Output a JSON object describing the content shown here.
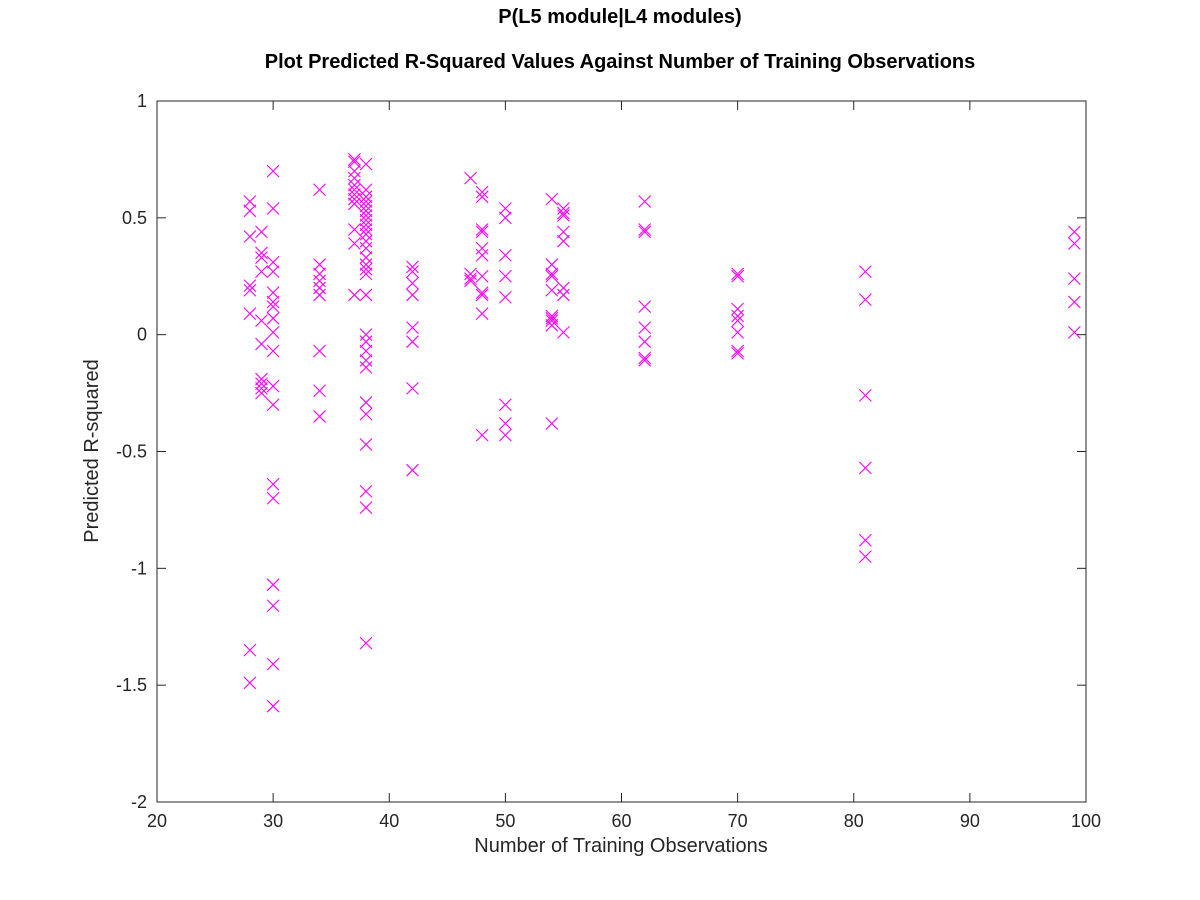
{
  "chart_data": {
    "type": "scatter",
    "title": "P(L5 module|L4 modules)",
    "subtitle": "Plot Predicted R-Squared Values Against Number of Training Observations",
    "xlabel": "Number of Training Observations",
    "ylabel": "Predicted R-squared",
    "xlim": [
      20,
      100
    ],
    "ylim": [
      -2,
      1
    ],
    "xticks": [
      20,
      30,
      40,
      50,
      60,
      70,
      80,
      90,
      100
    ],
    "xtick_labels": [
      "20",
      "30",
      "40",
      "50",
      "60",
      "70",
      "80",
      "90",
      "100"
    ],
    "yticks": [
      -2,
      -1.5,
      -1,
      -0.5,
      0,
      0.5,
      1
    ],
    "ytick_labels": [
      "-2",
      "-1.5",
      "-1",
      "-0.5",
      "0",
      "0.5",
      "1"
    ],
    "grid": false,
    "legend": "none",
    "marker": "x",
    "marker_color": "#ff00ff",
    "series": [
      {
        "points": [
          [
            28,
            0.57
          ],
          [
            28,
            0.53
          ],
          [
            28,
            0.42
          ],
          [
            28,
            0.21
          ],
          [
            28,
            0.19
          ],
          [
            28,
            0.09
          ],
          [
            28,
            -1.35
          ],
          [
            28,
            -1.49
          ],
          [
            29,
            0.44
          ],
          [
            29,
            0.35
          ],
          [
            29,
            0.33
          ],
          [
            29,
            0.27
          ],
          [
            29,
            0.06
          ],
          [
            29,
            -0.04
          ],
          [
            29,
            -0.19
          ],
          [
            29,
            -0.21
          ],
          [
            29,
            -0.23
          ],
          [
            29,
            -0.25
          ],
          [
            30,
            0.7
          ],
          [
            30,
            0.54
          ],
          [
            30,
            0.31
          ],
          [
            30,
            0.27
          ],
          [
            30,
            0.18
          ],
          [
            30,
            0.14
          ],
          [
            30,
            0.12
          ],
          [
            30,
            0.07
          ],
          [
            30,
            0.01
          ],
          [
            30,
            -0.07
          ],
          [
            30,
            -0.22
          ],
          [
            30,
            -0.3
          ],
          [
            30,
            -0.64
          ],
          [
            30,
            -0.7
          ],
          [
            30,
            -1.07
          ],
          [
            30,
            -1.16
          ],
          [
            30,
            -1.41
          ],
          [
            30,
            -1.59
          ],
          [
            34,
            0.62
          ],
          [
            34,
            0.3
          ],
          [
            34,
            0.26
          ],
          [
            34,
            0.23
          ],
          [
            34,
            0.2
          ],
          [
            34,
            0.17
          ],
          [
            34,
            -0.07
          ],
          [
            34,
            -0.24
          ],
          [
            34,
            -0.35
          ],
          [
            37,
            0.75
          ],
          [
            37,
            0.74
          ],
          [
            37,
            0.7
          ],
          [
            37,
            0.67
          ],
          [
            37,
            0.64
          ],
          [
            37,
            0.62
          ],
          [
            37,
            0.6
          ],
          [
            37,
            0.58
          ],
          [
            37,
            0.56
          ],
          [
            37,
            0.45
          ],
          [
            37,
            0.39
          ],
          [
            37,
            0.17
          ],
          [
            38,
            0.73
          ],
          [
            38,
            0.62
          ],
          [
            38,
            0.59
          ],
          [
            38,
            0.57
          ],
          [
            38,
            0.55
          ],
          [
            38,
            0.53
          ],
          [
            38,
            0.51
          ],
          [
            38,
            0.49
          ],
          [
            38,
            0.47
          ],
          [
            38,
            0.45
          ],
          [
            38,
            0.43
          ],
          [
            38,
            0.4
          ],
          [
            38,
            0.37
          ],
          [
            38,
            0.33
          ],
          [
            38,
            0.3
          ],
          [
            38,
            0.28
          ],
          [
            38,
            0.26
          ],
          [
            38,
            0.17
          ],
          [
            38,
            0.0
          ],
          [
            38,
            -0.03
          ],
          [
            38,
            -0.07
          ],
          [
            38,
            -0.11
          ],
          [
            38,
            -0.14
          ],
          [
            38,
            -0.29
          ],
          [
            38,
            -0.34
          ],
          [
            38,
            -0.47
          ],
          [
            38,
            -0.67
          ],
          [
            38,
            -0.74
          ],
          [
            38,
            -1.32
          ],
          [
            42,
            0.29
          ],
          [
            42,
            0.27
          ],
          [
            42,
            0.22
          ],
          [
            42,
            0.17
          ],
          [
            42,
            0.03
          ],
          [
            42,
            -0.03
          ],
          [
            42,
            -0.23
          ],
          [
            42,
            -0.58
          ],
          [
            47,
            0.67
          ],
          [
            47,
            0.26
          ],
          [
            47,
            0.24
          ],
          [
            47,
            0.23
          ],
          [
            48,
            0.61
          ],
          [
            48,
            0.59
          ],
          [
            48,
            0.45
          ],
          [
            48,
            0.44
          ],
          [
            48,
            0.37
          ],
          [
            48,
            0.34
          ],
          [
            48,
            0.25
          ],
          [
            48,
            0.18
          ],
          [
            48,
            0.17
          ],
          [
            48,
            0.09
          ],
          [
            48,
            -0.43
          ],
          [
            50,
            0.54
          ],
          [
            50,
            0.5
          ],
          [
            50,
            0.34
          ],
          [
            50,
            0.25
          ],
          [
            50,
            0.16
          ],
          [
            50,
            -0.3
          ],
          [
            50,
            -0.38
          ],
          [
            50,
            -0.43
          ],
          [
            54,
            0.58
          ],
          [
            54,
            0.3
          ],
          [
            54,
            0.26
          ],
          [
            54,
            0.25
          ],
          [
            54,
            0.19
          ],
          [
            54,
            0.08
          ],
          [
            54,
            0.07
          ],
          [
            54,
            0.06
          ],
          [
            54,
            0.04
          ],
          [
            54,
            -0.38
          ],
          [
            55,
            0.54
          ],
          [
            55,
            0.52
          ],
          [
            55,
            0.51
          ],
          [
            55,
            0.44
          ],
          [
            55,
            0.4
          ],
          [
            55,
            0.2
          ],
          [
            55,
            0.17
          ],
          [
            55,
            0.01
          ],
          [
            62,
            0.57
          ],
          [
            62,
            0.45
          ],
          [
            62,
            0.44
          ],
          [
            62,
            0.12
          ],
          [
            62,
            0.03
          ],
          [
            62,
            -0.03
          ],
          [
            62,
            -0.1
          ],
          [
            62,
            -0.11
          ],
          [
            70,
            0.26
          ],
          [
            70,
            0.25
          ],
          [
            70,
            0.11
          ],
          [
            70,
            0.08
          ],
          [
            70,
            0.06
          ],
          [
            70,
            0.01
          ],
          [
            70,
            -0.07
          ],
          [
            70,
            -0.08
          ],
          [
            81,
            0.27
          ],
          [
            81,
            0.15
          ],
          [
            81,
            -0.26
          ],
          [
            81,
            -0.57
          ],
          [
            81,
            -0.88
          ],
          [
            81,
            -0.95
          ],
          [
            99,
            0.44
          ],
          [
            99,
            0.39
          ],
          [
            99,
            0.24
          ],
          [
            99,
            0.14
          ],
          [
            99,
            0.01
          ]
        ]
      }
    ]
  }
}
